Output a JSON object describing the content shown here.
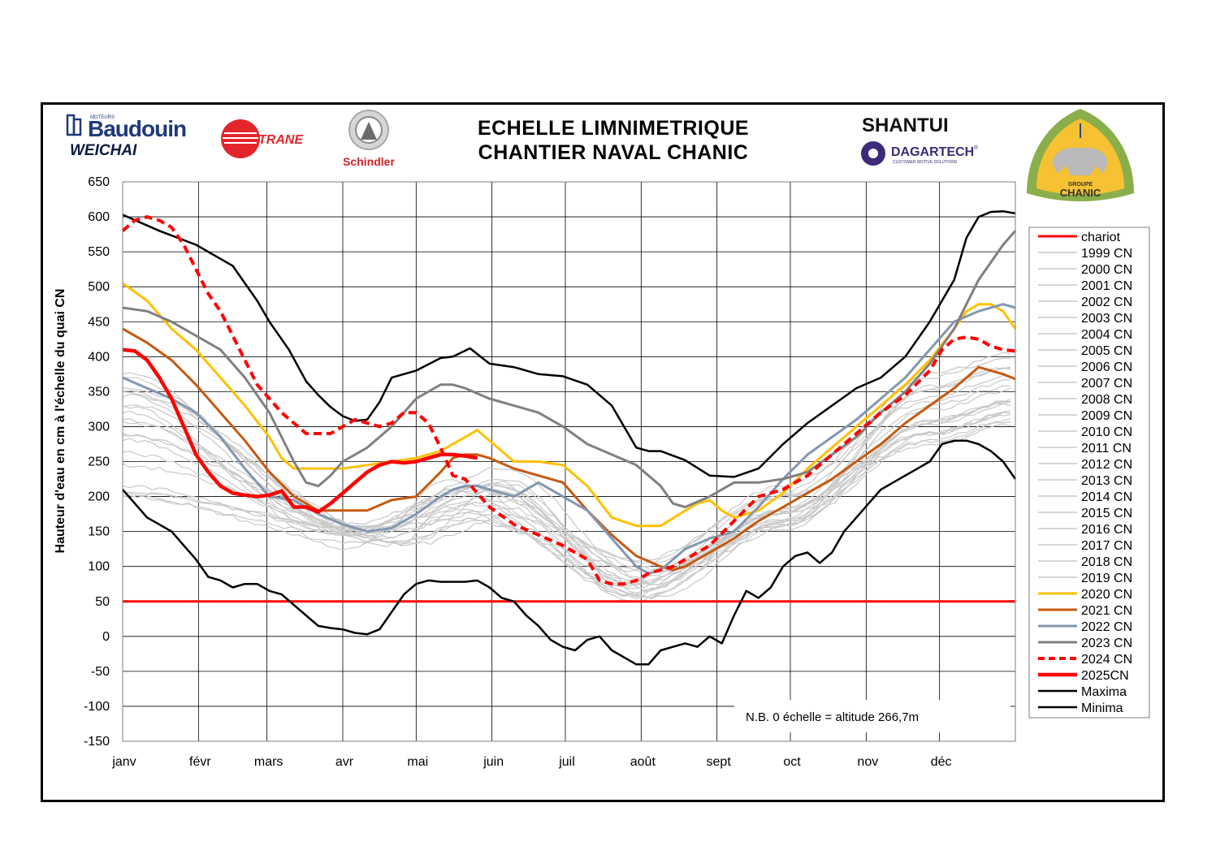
{
  "title_line1": "ECHELLE  LIMNIMETRIQUE",
  "title_line2": "CHANTIER NAVAL CHANIC",
  "note": "N.B.  0 échelle = altitude 266,7m",
  "logos": {
    "baudouin_small": "MOTEURS",
    "baudouin": "Baudouin",
    "weichai": "WEICHAI",
    "trane": "TRANE",
    "schindler": "Schindler",
    "shantui": "SHANTUI",
    "dagartech": "DAGARTECH",
    "dagartech_tag": "®",
    "dagartech_sub": "CUSTOMER MOTIVE SOLUTIONS",
    "chanic_group": "GROUPE",
    "chanic": "CHANIC"
  },
  "chart_data": {
    "type": "line",
    "ylabel": "Hauteur d'eau en cm à l'échelle du quai CN",
    "ylim": [
      -150,
      650
    ],
    "yticks": [
      650,
      600,
      550,
      500,
      450,
      400,
      350,
      300,
      250,
      200,
      150,
      100,
      50,
      0,
      -50,
      -100,
      -150
    ],
    "months": [
      "janv",
      "févr",
      "mars",
      "avr",
      "mai",
      "juin",
      "juil",
      "août",
      "sept",
      "oct",
      "nov",
      "déc"
    ],
    "x_unit": "day of year (1 Jan = 0, 31 Dec = 365)",
    "grid": true,
    "legend_position": "right",
    "colors": {
      "chariot": "#ff0000",
      "history": "#c8c8c8",
      "y2020": "#ffc000",
      "y2021": "#c55a11",
      "y2022": "#8497b0",
      "y2023": "#808080",
      "y2024": "#ff0000",
      "y2025": "#ff0000",
      "extreme": "#000000"
    },
    "legend": [
      "chariot",
      "1999 CN",
      "2000 CN",
      "2001 CN",
      "2002 CN",
      "2003 CN",
      "2004 CN",
      "2005 CN",
      "2006 CN",
      "2007 CN",
      "2008 CN",
      "2009 CN",
      "2010 CN",
      "2011 CN",
      "2012 CN",
      "2013 CN",
      "2014 CN",
      "2015 CN",
      "2016 CN",
      "2017 CN",
      "2018 CN",
      "2019 CN",
      "2020 CN",
      "2021 CN",
      "2022 CN",
      "2023 CN",
      "2024 CN",
      "2025CN",
      "Maxima",
      "Minima"
    ],
    "chariot_level": 50,
    "series": [
      {
        "name": "Maxima",
        "style": "extreme",
        "x": [
          0,
          15,
          30,
          45,
          50,
          55,
          60,
          68,
          75,
          80,
          85,
          90,
          95,
          100,
          105,
          110,
          120,
          130,
          135,
          142,
          150,
          160,
          170,
          180,
          190,
          200,
          205,
          210,
          215,
          220,
          230,
          240,
          250,
          260,
          270,
          280,
          290,
          300,
          310,
          320,
          330,
          340,
          345,
          350,
          355,
          360,
          365
        ],
        "y": [
          603,
          580,
          560,
          530,
          505,
          480,
          450,
          410,
          365,
          345,
          328,
          315,
          308,
          310,
          335,
          370,
          380,
          398,
          400,
          412,
          390,
          385,
          375,
          372,
          360,
          330,
          300,
          270,
          265,
          265,
          252,
          230,
          228,
          240,
          275,
          305,
          330,
          355,
          370,
          400,
          450,
          510,
          570,
          600,
          607,
          608,
          605
        ]
      },
      {
        "name": "Minima",
        "style": "extreme",
        "x": [
          0,
          10,
          20,
          30,
          35,
          40,
          45,
          50,
          55,
          60,
          65,
          70,
          75,
          80,
          85,
          90,
          95,
          100,
          105,
          110,
          115,
          120,
          125,
          130,
          135,
          140,
          145,
          150,
          155,
          160,
          165,
          170,
          175,
          180,
          185,
          190,
          195,
          200,
          205,
          210,
          215,
          220,
          225,
          230,
          235,
          240,
          245,
          250,
          255,
          260,
          265,
          270,
          275,
          280,
          285,
          290,
          295,
          300,
          305,
          310,
          315,
          320,
          325,
          330,
          335,
          340,
          345,
          350,
          355,
          360,
          365
        ],
        "y": [
          210,
          170,
          150,
          110,
          85,
          80,
          70,
          75,
          75,
          65,
          60,
          45,
          30,
          15,
          12,
          10,
          5,
          3,
          10,
          35,
          60,
          75,
          80,
          78,
          78,
          78,
          80,
          70,
          55,
          50,
          30,
          15,
          -5,
          -15,
          -20,
          -5,
          0,
          -20,
          -30,
          -40,
          -40,
          -20,
          -15,
          -10,
          -15,
          0,
          -10,
          30,
          65,
          55,
          70,
          100,
          115,
          120,
          105,
          120,
          150,
          170,
          190,
          210,
          220,
          230,
          240,
          250,
          275,
          280,
          280,
          275,
          265,
          250,
          225
        ]
      },
      {
        "name": "2020 CN",
        "style": "y2020",
        "x": [
          0,
          10,
          20,
          30,
          40,
          50,
          60,
          65,
          70,
          80,
          90,
          100,
          110,
          120,
          130,
          140,
          145,
          150,
          155,
          160,
          165,
          170,
          180,
          190,
          200,
          210,
          220,
          230,
          235,
          240,
          245,
          250,
          255,
          260,
          270,
          280,
          290,
          300,
          310,
          320,
          330,
          340,
          345,
          350,
          355,
          360,
          365
        ],
        "y": [
          505,
          480,
          440,
          410,
          370,
          330,
          285,
          255,
          240,
          240,
          240,
          245,
          250,
          255,
          265,
          285,
          295,
          280,
          265,
          250,
          250,
          250,
          245,
          215,
          170,
          158,
          158,
          180,
          190,
          195,
          180,
          170,
          175,
          180,
          205,
          240,
          270,
          300,
          330,
          360,
          395,
          440,
          465,
          475,
          475,
          465,
          440
        ]
      },
      {
        "name": "2021 CN",
        "style": "y2021",
        "x": [
          0,
          10,
          20,
          30,
          40,
          50,
          60,
          70,
          80,
          90,
          100,
          110,
          120,
          130,
          135,
          140,
          145,
          150,
          160,
          170,
          180,
          190,
          200,
          210,
          220,
          225,
          230,
          235,
          240,
          250,
          260,
          270,
          280,
          290,
          300,
          310,
          320,
          330,
          340,
          350,
          360,
          365
        ],
        "y": [
          440,
          420,
          395,
          360,
          320,
          280,
          235,
          200,
          180,
          180,
          180,
          195,
          200,
          235,
          255,
          260,
          260,
          255,
          240,
          230,
          220,
          180,
          145,
          115,
          100,
          95,
          100,
          110,
          120,
          140,
          165,
          185,
          205,
          225,
          250,
          275,
          305,
          330,
          355,
          385,
          375,
          368
        ]
      },
      {
        "name": "2022 CN",
        "style": "y2022",
        "x": [
          0,
          10,
          20,
          30,
          40,
          50,
          60,
          70,
          80,
          90,
          100,
          110,
          120,
          130,
          135,
          140,
          145,
          150,
          160,
          170,
          180,
          190,
          200,
          210,
          215,
          220,
          225,
          230,
          240,
          245,
          250,
          260,
          270,
          280,
          290,
          300,
          310,
          320,
          330,
          340,
          350,
          360,
          365
        ],
        "y": [
          370,
          355,
          340,
          320,
          285,
          240,
          200,
          195,
          175,
          160,
          150,
          155,
          175,
          200,
          210,
          215,
          215,
          210,
          200,
          220,
          200,
          180,
          140,
          100,
          90,
          95,
          110,
          125,
          140,
          145,
          150,
          185,
          225,
          260,
          285,
          310,
          340,
          370,
          410,
          450,
          465,
          475,
          470
        ]
      },
      {
        "name": "2023 CN",
        "style": "y2023",
        "x": [
          0,
          10,
          20,
          30,
          40,
          50,
          60,
          70,
          75,
          80,
          85,
          90,
          100,
          110,
          120,
          130,
          135,
          140,
          150,
          160,
          170,
          180,
          190,
          200,
          210,
          220,
          225,
          230,
          240,
          250,
          260,
          270,
          280,
          290,
          300,
          310,
          320,
          330,
          340,
          350,
          360,
          365
        ],
        "y": [
          470,
          465,
          450,
          430,
          410,
          370,
          320,
          250,
          220,
          215,
          230,
          250,
          270,
          300,
          340,
          360,
          360,
          355,
          340,
          330,
          320,
          300,
          275,
          260,
          245,
          215,
          190,
          185,
          200,
          220,
          220,
          225,
          235,
          260,
          285,
          320,
          350,
          390,
          440,
          510,
          560,
          580
        ]
      },
      {
        "name": "2024 CN",
        "style": "y2024",
        "x": [
          0,
          5,
          10,
          15,
          20,
          25,
          30,
          35,
          40,
          45,
          50,
          55,
          60,
          65,
          70,
          75,
          80,
          85,
          90,
          95,
          100,
          105,
          110,
          115,
          120,
          125,
          130,
          135,
          140,
          145,
          150,
          160,
          170,
          180,
          190,
          195,
          200,
          205,
          210,
          215,
          220,
          225,
          230,
          240,
          250,
          260,
          270,
          280,
          290,
          300,
          310,
          320,
          330,
          335,
          340,
          345,
          350,
          355,
          360,
          365
        ],
        "y": [
          580,
          595,
          600,
          595,
          585,
          560,
          525,
          490,
          465,
          430,
          395,
          360,
          340,
          320,
          305,
          290,
          290,
          290,
          300,
          310,
          305,
          300,
          305,
          320,
          320,
          305,
          270,
          230,
          225,
          205,
          185,
          160,
          145,
          130,
          110,
          80,
          75,
          75,
          80,
          90,
          95,
          100,
          110,
          130,
          165,
          200,
          210,
          230,
          260,
          290,
          320,
          345,
          380,
          410,
          425,
          428,
          425,
          415,
          410,
          408
        ]
      },
      {
        "name": "2025CN",
        "style": "y2025",
        "x": [
          0,
          5,
          10,
          15,
          20,
          25,
          30,
          35,
          40,
          45,
          50,
          55,
          60,
          65,
          70,
          75,
          80,
          85,
          90,
          95,
          100,
          105,
          110,
          115,
          120,
          125,
          130,
          135,
          140,
          145
        ],
        "y": [
          410,
          408,
          395,
          370,
          340,
          300,
          260,
          235,
          215,
          205,
          202,
          200,
          202,
          208,
          185,
          185,
          178,
          190,
          205,
          220,
          235,
          245,
          250,
          248,
          250,
          255,
          260,
          260,
          258,
          255
        ]
      }
    ]
  }
}
